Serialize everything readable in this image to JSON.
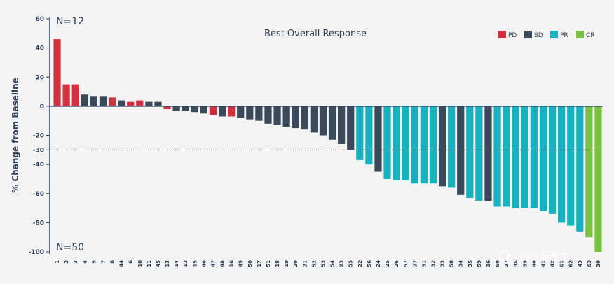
{
  "chart_data": {
    "type": "bar",
    "title": "Best Overall Response",
    "ylabel": "% Change from Baseline",
    "xlabel": "",
    "ylim": [
      -100,
      60
    ],
    "yticks": [
      60,
      40,
      20,
      0,
      -20,
      -30,
      -40,
      -60,
      -80,
      -100
    ],
    "ytick_labels": [
      "60",
      "40",
      "20",
      "0",
      "-20",
      "-30",
      "-40",
      "-60",
      "-80",
      "-100"
    ],
    "reference_line": -30,
    "annotations": {
      "top": "N=12",
      "bottom": "N=50"
    },
    "legend": [
      {
        "code": "PD",
        "label": "PD",
        "color": "#d32f3c"
      },
      {
        "code": "SD",
        "label": "SD",
        "color": "#3b4a5a"
      },
      {
        "code": "PR",
        "label": "PR",
        "color": "#17b2c0"
      },
      {
        "code": "CR",
        "label": "CR",
        "color": "#7cc242"
      }
    ],
    "legend_position": "top-right",
    "grid": false,
    "categories": [
      "1",
      "2",
      "3",
      "4",
      "5",
      "7",
      "8",
      "44",
      "6",
      "10",
      "11",
      "45",
      "13",
      "14",
      "12",
      "15",
      "46",
      "47",
      "48",
      "16",
      "49",
      "50",
      "17",
      "51",
      "18",
      "19",
      "20",
      "21",
      "52",
      "53",
      "54",
      "23",
      "55",
      "22",
      "56",
      "24",
      "25",
      "26",
      "57",
      "27",
      "31",
      "32",
      "33",
      "58",
      "34",
      "35",
      "59",
      "36",
      "60",
      "37",
      "38",
      "39",
      "40",
      "41",
      "42",
      "61",
      "62",
      "43",
      "63",
      "30"
    ],
    "values": [
      46,
      15,
      15,
      8,
      7,
      7,
      6,
      4,
      3,
      4,
      3,
      3,
      -2,
      -3,
      -3,
      -4,
      -5,
      -6,
      -7,
      -7,
      -8,
      -9,
      -10,
      -12,
      -13,
      -14,
      -15,
      -16,
      -18,
      -20,
      -23,
      -26,
      -30,
      -37,
      -40,
      -45,
      -50,
      -51,
      -51,
      -53,
      -53,
      -53,
      -55,
      -56,
      -61,
      -63,
      -65,
      -65,
      -69,
      -69,
      -70,
      -70,
      -70,
      -72,
      -74,
      -80,
      -82,
      -86,
      -90,
      -100
    ],
    "responses": [
      "PD",
      "PD",
      "PD",
      "SD",
      "SD",
      "SD",
      "PD",
      "SD",
      "PD",
      "PD",
      "SD",
      "SD",
      "PD",
      "SD",
      "SD",
      "SD",
      "SD",
      "PD",
      "SD",
      "PD",
      "SD",
      "SD",
      "SD",
      "SD",
      "SD",
      "SD",
      "SD",
      "SD",
      "SD",
      "SD",
      "SD",
      "SD",
      "SD",
      "PR",
      "PR",
      "SD",
      "PR",
      "PR",
      "PR",
      "PR",
      "PR",
      "PR",
      "SD",
      "PR",
      "SD",
      "PR",
      "PR",
      "SD",
      "PR",
      "PR",
      "PR",
      "PR",
      "PR",
      "PR",
      "PR",
      "PR",
      "PR",
      "PR",
      "CR",
      "CR"
    ]
  },
  "watermark": "邱立新医生"
}
